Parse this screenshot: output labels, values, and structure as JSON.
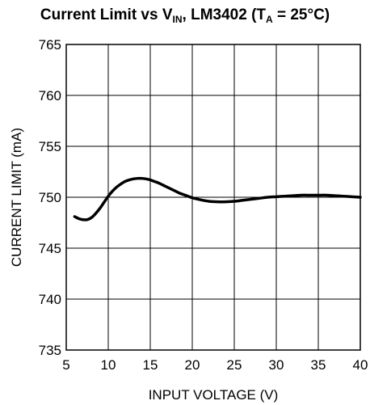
{
  "chart_data": {
    "type": "line",
    "title_parts": {
      "main": "Current Limit vs V",
      "vin_sub": "IN",
      "middle": ", LM3402 (T",
      "ta_sub": "A",
      "end": " = 25°C)"
    },
    "xlabel": "INPUT VOLTAGE (V)",
    "ylabel": "CURRENT LIMIT (mA)",
    "xlim": [
      5,
      40
    ],
    "ylim": [
      735,
      765
    ],
    "x_ticks": [
      "5",
      "10",
      "15",
      "20",
      "25",
      "30",
      "35",
      "40"
    ],
    "y_ticks": [
      "765",
      "760",
      "755",
      "750",
      "745",
      "740",
      "735"
    ],
    "grid": true,
    "series": [
      {
        "x": [
          6,
          6.5,
          7,
          7.5,
          8,
          8.5,
          9,
          9.5,
          10,
          10.5,
          11,
          11.5,
          12,
          12.5,
          13,
          13.5,
          14,
          14.5,
          15,
          15.5,
          16,
          16.5,
          17,
          17.5,
          18,
          18.5,
          19,
          19.5,
          20,
          21,
          22,
          23,
          24,
          25,
          26,
          27,
          28,
          29,
          30,
          31,
          32,
          33,
          34,
          35,
          36,
          37,
          38,
          39,
          40
        ],
        "values": [
          748.1,
          747.9,
          747.8,
          747.8,
          748.0,
          748.4,
          748.9,
          749.5,
          750.1,
          750.6,
          751.0,
          751.3,
          751.55,
          751.7,
          751.8,
          751.85,
          751.85,
          751.8,
          751.7,
          751.55,
          751.4,
          751.2,
          751.0,
          750.8,
          750.6,
          750.4,
          750.25,
          750.1,
          749.95,
          749.75,
          749.6,
          749.55,
          749.55,
          749.6,
          749.7,
          749.8,
          749.9,
          750.0,
          750.05,
          750.1,
          750.15,
          750.2,
          750.2,
          750.2,
          750.2,
          750.15,
          750.1,
          750.05,
          750.0
        ],
        "color": "#000000"
      }
    ]
  }
}
